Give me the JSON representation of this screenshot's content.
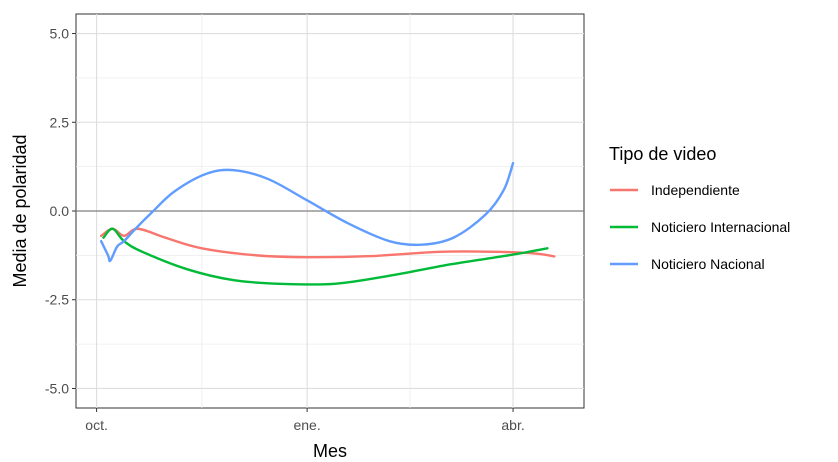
{
  "chart_data": {
    "type": "line",
    "title": "",
    "xlabel": "Mes",
    "ylabel": "Media de polaridad",
    "x_ticks": [
      {
        "label": "oct.",
        "value": 0
      },
      {
        "label": "ene.",
        "value": 92
      },
      {
        "label": "abr.",
        "value": 182
      }
    ],
    "y_ticks": [
      {
        "label": "5.0",
        "value": 5.0
      },
      {
        "label": "2.5",
        "value": 2.5
      },
      {
        "label": "0.0",
        "value": 0.0
      },
      {
        "label": "-2.5",
        "value": -2.5
      },
      {
        "label": "-5.0",
        "value": -5.0
      }
    ],
    "xlim": [
      -9,
      213
    ],
    "ylim": [
      -5.55,
      5.55
    ],
    "x_unit": "days since oct. 1",
    "grid": true,
    "reference_line_y": 0,
    "legend": {
      "title": "Tipo de video",
      "position": "right"
    },
    "series": [
      {
        "name": "Independiente",
        "color": "#F8766D",
        "points": [
          [
            2,
            -0.7
          ],
          [
            7,
            -0.5
          ],
          [
            12,
            -0.7
          ],
          [
            18,
            -0.5
          ],
          [
            30,
            -0.75
          ],
          [
            46,
            -1.05
          ],
          [
            70,
            -1.25
          ],
          [
            92,
            -1.3
          ],
          [
            120,
            -1.27
          ],
          [
            150,
            -1.15
          ],
          [
            175,
            -1.15
          ],
          [
            192,
            -1.2
          ],
          [
            200,
            -1.28
          ]
        ]
      },
      {
        "name": "Noticiero Internacional",
        "color": "#00BA38",
        "points": [
          [
            3,
            -0.75
          ],
          [
            7,
            -0.5
          ],
          [
            12,
            -0.85
          ],
          [
            20,
            -1.15
          ],
          [
            40,
            -1.65
          ],
          [
            60,
            -1.95
          ],
          [
            80,
            -2.05
          ],
          [
            104,
            -2.05
          ],
          [
            130,
            -1.8
          ],
          [
            155,
            -1.5
          ],
          [
            180,
            -1.25
          ],
          [
            197,
            -1.05
          ]
        ]
      },
      {
        "name": "Noticiero Nacional",
        "color": "#619CFF",
        "points": [
          [
            2,
            -0.85
          ],
          [
            5,
            -1.25
          ],
          [
            6,
            -1.4
          ],
          [
            9,
            -1.0
          ],
          [
            12,
            -0.85
          ],
          [
            17,
            -0.5
          ],
          [
            24,
            -0.05
          ],
          [
            34,
            0.55
          ],
          [
            48,
            1.05
          ],
          [
            60,
            1.15
          ],
          [
            75,
            0.9
          ],
          [
            92,
            0.3
          ],
          [
            110,
            -0.35
          ],
          [
            128,
            -0.85
          ],
          [
            142,
            -0.95
          ],
          [
            156,
            -0.75
          ],
          [
            170,
            -0.1
          ],
          [
            178,
            0.6
          ],
          [
            182,
            1.35
          ]
        ]
      }
    ]
  }
}
